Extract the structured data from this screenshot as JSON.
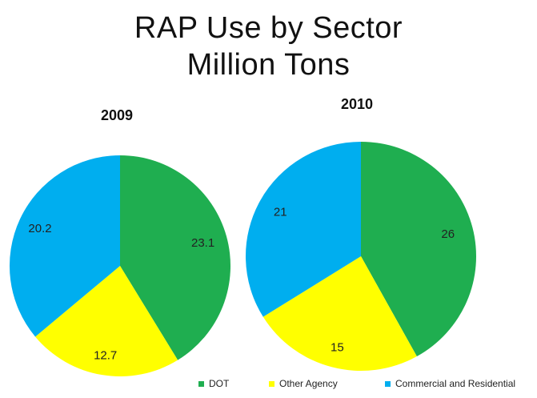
{
  "title_line1": "RAP Use by Sector",
  "title_line2": "Million Tons",
  "colors": {
    "DOT": "#1fae50",
    "Other Agency": "#ffff00",
    "Commercial and Residential": "#00aeef"
  },
  "chart_data": [
    {
      "type": "pie",
      "title": "2009",
      "labels": [
        "DOT",
        "Other Agency",
        "Commercial and Residential"
      ],
      "values": [
        23.1,
        12.7,
        20.2
      ],
      "data_labels": [
        "23.1",
        "12.7",
        "20.2"
      ]
    },
    {
      "type": "pie",
      "title": "2010",
      "labels": [
        "DOT",
        "Other Agency",
        "Commercial and Residential"
      ],
      "values": [
        26,
        15,
        21
      ],
      "data_labels": [
        "26",
        "15",
        "21"
      ]
    }
  ],
  "legend": [
    "DOT",
    "Other Agency",
    "Commercial and Residential"
  ]
}
